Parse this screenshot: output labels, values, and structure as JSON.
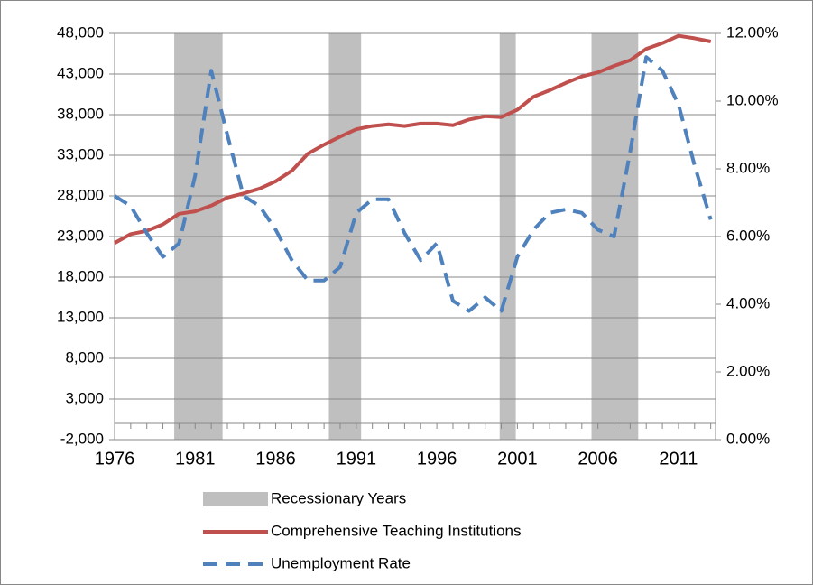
{
  "chart_data": {
    "type": "line",
    "x": [
      1976,
      1977,
      1978,
      1979,
      1980,
      1981,
      1982,
      1983,
      1984,
      1985,
      1986,
      1987,
      1988,
      1989,
      1990,
      1991,
      1992,
      1993,
      1994,
      1995,
      1996,
      1997,
      1998,
      1999,
      2000,
      2001,
      2002,
      2003,
      2004,
      2005,
      2006,
      2007,
      2008,
      2009,
      2010,
      2011,
      2012,
      2013
    ],
    "xlim": [
      1976,
      2013.3
    ],
    "xticks": [
      1976,
      1981,
      1986,
      1991,
      1996,
      2001,
      2006,
      2011
    ],
    "ylim": [
      -2000,
      48000
    ],
    "yticks": [
      {
        "value": -2000,
        "label": "-2,000"
      },
      {
        "value": 3000,
        "label": "3,000"
      },
      {
        "value": 8000,
        "label": "8,000"
      },
      {
        "value": 13000,
        "label": "13,000"
      },
      {
        "value": 18000,
        "label": "18,000"
      },
      {
        "value": 23000,
        "label": "23,000"
      },
      {
        "value": 28000,
        "label": "28,000"
      },
      {
        "value": 33000,
        "label": "33,000"
      },
      {
        "value": 38000,
        "label": "38,000"
      },
      {
        "value": 43000,
        "label": "43,000"
      },
      {
        "value": 48000,
        "label": "48,000"
      }
    ],
    "y2lim": [
      0,
      12
    ],
    "y2ticks": [
      {
        "value": 0,
        "label": "0.00%"
      },
      {
        "value": 2,
        "label": "2.00%"
      },
      {
        "value": 4,
        "label": "4.00%"
      },
      {
        "value": 6,
        "label": "6.00%"
      },
      {
        "value": 8,
        "label": "8.00%"
      },
      {
        "value": 10,
        "label": "10.00%"
      },
      {
        "value": 12,
        "label": "12.00%"
      }
    ],
    "grid": true,
    "legend": "bottom",
    "series": [
      {
        "name": "Recessionary Years",
        "color": "#bfbfbf",
        "type": "band",
        "ranges": [
          [
            1979.7,
            1982.7
          ],
          [
            1989.3,
            1991.3
          ],
          [
            1999.9,
            2000.9
          ],
          [
            2005.6,
            2008.5
          ]
        ]
      },
      {
        "name": "Comprehensive Teaching  Institutions",
        "color": "#c0504d",
        "values": [
          22200,
          23300,
          23700,
          24500,
          25800,
          26100,
          26800,
          27800,
          28300,
          28900,
          29800,
          31100,
          33200,
          34300,
          35300,
          36200,
          36600,
          36800,
          36600,
          36900,
          36900,
          36700,
          37400,
          37800,
          37700,
          38600,
          40200,
          41000,
          41900,
          42700,
          43200,
          44000,
          44700,
          46100,
          46800,
          47700,
          47400,
          47000
        ]
      },
      {
        "name": "Unemployment Rate",
        "color": "#4f81bd",
        "axis": "y2",
        "dashed": true,
        "values": [
          7.2,
          6.9,
          6.1,
          5.4,
          5.8,
          7.8,
          10.9,
          9.0,
          7.2,
          6.9,
          6.2,
          5.3,
          4.7,
          4.7,
          5.1,
          6.7,
          7.1,
          7.1,
          6.1,
          5.3,
          5.8,
          4.1,
          3.8,
          4.2,
          3.8,
          5.4,
          6.2,
          6.7,
          6.8,
          6.7,
          6.2,
          6.0,
          8.5,
          11.3,
          10.9,
          9.9,
          8.1,
          6.5
        ]
      }
    ]
  }
}
